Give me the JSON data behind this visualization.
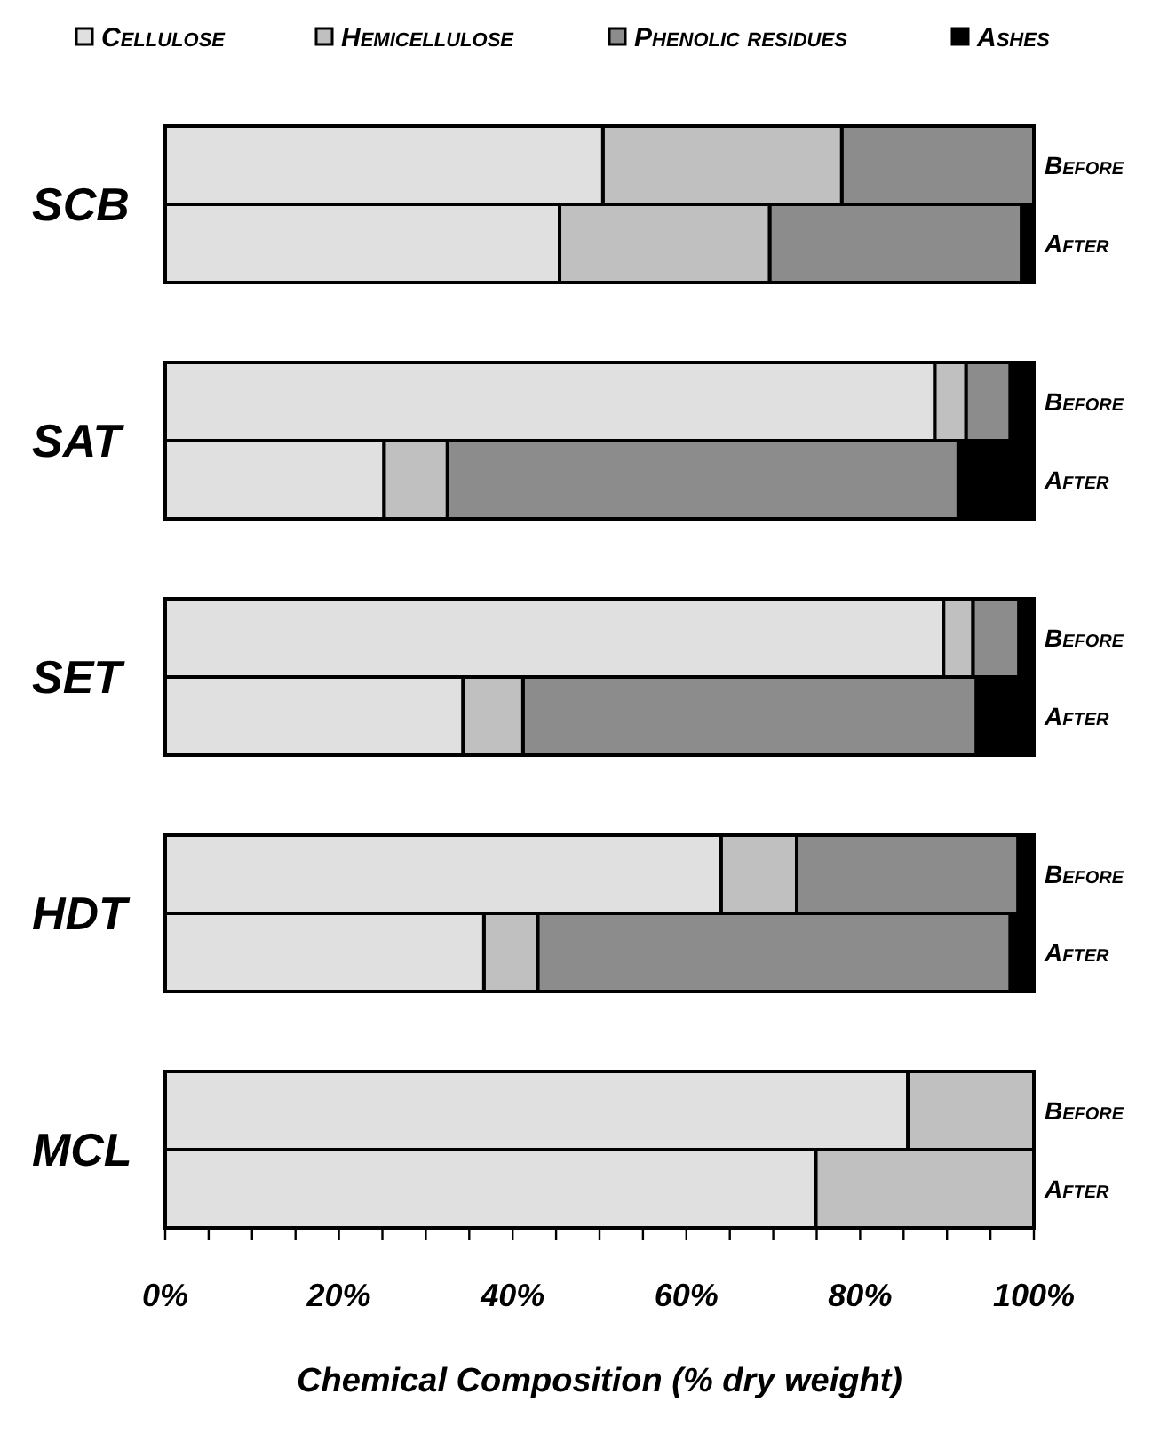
{
  "chart_data": {
    "type": "bar",
    "orientation": "horizontal",
    "stacked": true,
    "xlabel": "Chemical Composition (% dry weight)",
    "categories": [
      "Before",
      "After",
      "Before",
      "After",
      "Before",
      "After",
      "Before",
      "After",
      "Before",
      "After"
    ],
    "annotations": [
      "SCB",
      "SAT",
      "SET",
      "HDT",
      "MCL"
    ],
    "series": [
      {
        "name": "Cellulose",
        "color": "#e0e0e0",
        "values": [
          50.4,
          45.4,
          88.6,
          25.2,
          89.6,
          34.3,
          64.0,
          36.7,
          85.5,
          74.9
        ]
      },
      {
        "name": "Hemicellulose",
        "color": "#c0c0c0",
        "values": [
          27.5,
          24.2,
          3.6,
          7.3,
          3.4,
          6.9,
          8.7,
          6.2,
          14.5,
          25.1
        ]
      },
      {
        "name": "Phenolic residues",
        "color": "#8c8c8c",
        "values": [
          22.1,
          29.0,
          5.1,
          58.8,
          5.3,
          52.2,
          25.5,
          54.4,
          0,
          0
        ]
      },
      {
        "name": "Ashes",
        "color": "#000000",
        "values": [
          0,
          1.4,
          2.7,
          8.7,
          1.7,
          6.6,
          1.8,
          2.7,
          0,
          0
        ]
      }
    ],
    "xlim": [
      0,
      100
    ],
    "xticks": [
      {
        "value": 0,
        "label": "0%"
      },
      {
        "value": 5,
        "label": null
      },
      {
        "value": 10,
        "label": null
      },
      {
        "value": 15,
        "label": null
      },
      {
        "value": 20,
        "label": "20%"
      },
      {
        "value": 25,
        "label": null
      },
      {
        "value": 30,
        "label": null
      },
      {
        "value": 35,
        "label": null
      },
      {
        "value": 40,
        "label": "40%"
      },
      {
        "value": 45,
        "label": null
      },
      {
        "value": 50,
        "label": null
      },
      {
        "value": 55,
        "label": null
      },
      {
        "value": 60,
        "label": "60%"
      },
      {
        "value": 65,
        "label": null
      },
      {
        "value": 70,
        "label": null
      },
      {
        "value": 75,
        "label": null
      },
      {
        "value": 80,
        "label": "80%"
      },
      {
        "value": 85,
        "label": null
      },
      {
        "value": 90,
        "label": null
      },
      {
        "value": 95,
        "label": null
      },
      {
        "value": 100,
        "label": "100%"
      }
    ],
    "legend": "top",
    "grid": false
  }
}
